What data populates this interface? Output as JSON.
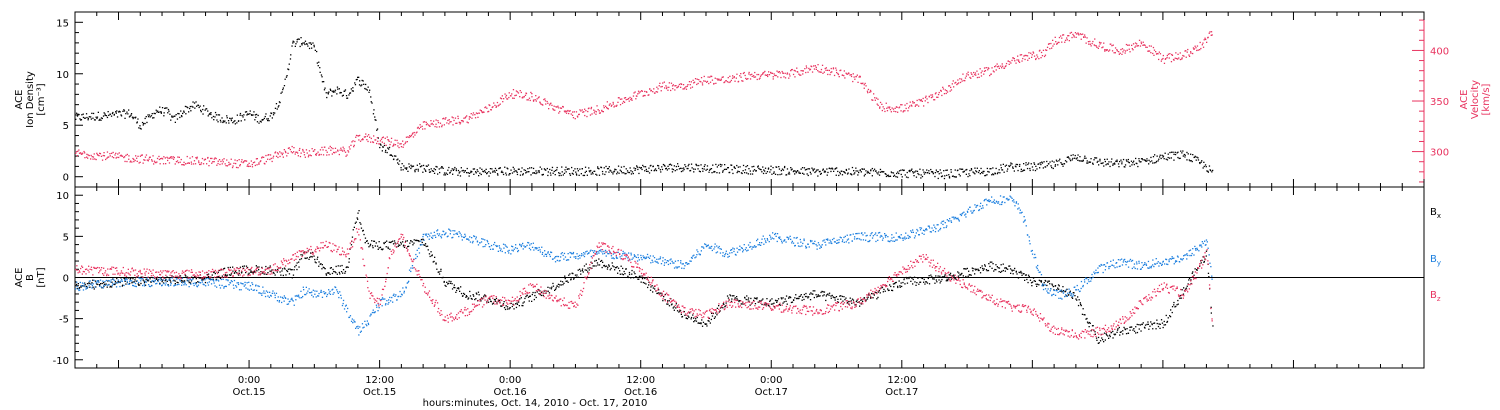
{
  "chart_data": [
    {
      "type": "scatter",
      "panel": "top",
      "left_axis": {
        "label_lines": [
          "ACE",
          "Ion Density",
          "[cm⁻³]"
        ],
        "range": [
          -1,
          16
        ],
        "ticks": [
          "0",
          "5",
          "10",
          "15"
        ],
        "tick_values": [
          0,
          5,
          10,
          15
        ]
      },
      "right_axis": {
        "label_lines": [
          "ACE",
          "Velocity",
          "[km/s]"
        ],
        "range": [
          265,
          438
        ],
        "ticks": [
          "300",
          "350",
          "400"
        ],
        "tick_values": [
          300,
          350,
          400
        ],
        "color": "#e8335f"
      },
      "series": [
        {
          "color": "#000000",
          "axis": "left",
          "x_hours": [
            -16,
            -13,
            -11,
            -10,
            -8.5,
            -7.5,
            -7,
            -6,
            -5,
            -3,
            -1.5,
            0,
            1,
            2,
            3,
            4,
            5,
            6,
            7,
            8,
            9,
            10,
            11,
            12,
            13,
            14,
            16,
            18,
            20,
            24,
            28,
            32,
            36,
            40,
            44,
            48,
            52,
            54,
            56,
            60,
            64,
            68,
            70,
            72,
            74,
            76,
            78,
            80,
            82,
            84,
            86,
            88,
            88.5
          ],
          "values": [
            5.8,
            6.0,
            6.2,
            5.0,
            6.5,
            6.3,
            5.5,
            6.5,
            7.0,
            5.8,
            5.5,
            6.2,
            5.6,
            6.0,
            8.0,
            13.0,
            13.2,
            12.5,
            8.0,
            8.5,
            8.0,
            9.5,
            8.5,
            3.0,
            2.5,
            1.0,
            0.9,
            0.6,
            0.5,
            0.6,
            0.6,
            0.6,
            0.8,
            1.0,
            0.8,
            0.7,
            0.5,
            0.6,
            0.5,
            0.4,
            0.3,
            0.6,
            1.0,
            1.0,
            1.2,
            2.0,
            1.5,
            1.3,
            1.5,
            2.0,
            2.2,
            1.0,
            0.3
          ]
        },
        {
          "color": "#e8335f",
          "axis": "right",
          "x_hours": [
            -16,
            -12,
            -8,
            -4,
            0,
            3,
            4,
            5,
            6,
            8,
            9,
            10,
            12,
            14,
            16,
            18,
            20,
            22,
            24,
            26,
            28,
            30,
            32,
            34,
            36,
            38,
            40,
            42,
            44,
            46,
            48,
            50,
            52,
            54,
            56,
            58,
            60,
            62,
            64,
            66,
            68,
            70,
            72,
            73,
            74,
            76,
            78,
            80,
            82,
            84,
            86,
            88,
            88.5
          ],
          "values": [
            299,
            295,
            292,
            291,
            288,
            298,
            303,
            298,
            300,
            302,
            300,
            315,
            312,
            308,
            326,
            330,
            333,
            343,
            358,
            355,
            344,
            337,
            342,
            350,
            358,
            365,
            366,
            372,
            371,
            376,
            376,
            378,
            384,
            379,
            372,
            345,
            343,
            350,
            362,
            376,
            380,
            390,
            395,
            398,
            410,
            416,
            406,
            400,
            408,
            392,
            396,
            410,
            420
          ]
        }
      ]
    },
    {
      "type": "scatter",
      "panel": "bottom",
      "left_axis": {
        "label_lines": [
          "ACE",
          "B",
          "[nT]"
        ],
        "range": [
          -11,
          11
        ],
        "ticks": [
          "-10",
          "-5",
          "0",
          "5",
          "10"
        ],
        "tick_values": [
          -10,
          -5,
          0,
          5,
          10
        ]
      },
      "zero_line": 0,
      "legend": [
        {
          "text": "B",
          "sub": "x",
          "color": "#000000"
        },
        {
          "text": "B",
          "sub": "y",
          "color": "#1c7fdf"
        },
        {
          "text": "B",
          "sub": "z",
          "color": "#e8335f"
        }
      ],
      "series": [
        {
          "color": "#000000",
          "x_hours": [
            -16,
            -12,
            -8,
            -4,
            -2,
            0,
            2,
            4,
            5,
            6,
            7,
            8,
            9,
            9.5,
            10,
            10.5,
            11,
            12,
            14,
            16,
            18,
            20,
            22,
            24,
            28,
            32,
            36,
            40,
            42,
            44,
            48,
            52,
            56,
            60,
            64,
            68,
            70,
            72,
            74,
            76,
            78,
            80,
            84,
            88,
            88.5
          ],
          "values": [
            -1.0,
            -0.5,
            -0.3,
            0.0,
            0.8,
            1.0,
            1.0,
            0.5,
            3.0,
            2.5,
            0.5,
            1.0,
            1.0,
            6.0,
            8.0,
            5.0,
            4.0,
            4.0,
            4.0,
            4.5,
            -0.5,
            -2.0,
            -2.5,
            -3.5,
            -1.0,
            2.0,
            0.0,
            -4.5,
            -5.5,
            -2.5,
            -3.0,
            -2.0,
            -3.0,
            -0.5,
            0.0,
            1.5,
            1.0,
            -0.5,
            -1.0,
            -2.5,
            -7.5,
            -6.5,
            -5.5,
            3.0,
            -5.5
          ]
        },
        {
          "color": "#1c7fdf",
          "x_hours": [
            -16,
            -12,
            -8,
            -4,
            0,
            4,
            5,
            6,
            8,
            10,
            11,
            12,
            14,
            16,
            18,
            20,
            22,
            24,
            26,
            28,
            32,
            36,
            40,
            42,
            44,
            48,
            52,
            56,
            60,
            64,
            66,
            68,
            70,
            71,
            72,
            73,
            74,
            75,
            76,
            78,
            80,
            82,
            84,
            86,
            88,
            88.5
          ],
          "values": [
            -1.0,
            -0.5,
            -0.5,
            -0.5,
            -1.0,
            -3.0,
            -1.5,
            -2.0,
            -1.5,
            -6.5,
            -5.0,
            -3.0,
            -2.0,
            5.0,
            5.5,
            5.0,
            4.0,
            3.5,
            4.0,
            2.5,
            3.0,
            2.5,
            1.5,
            4.0,
            3.0,
            5.0,
            4.0,
            5.0,
            5.0,
            6.5,
            8.0,
            9.5,
            9.5,
            8.0,
            3.0,
            -1.0,
            -2.0,
            -2.0,
            -1.5,
            1.0,
            2.0,
            1.5,
            2.0,
            2.5,
            4.5,
            0.0
          ]
        },
        {
          "color": "#e8335f",
          "x_hours": [
            -16,
            -12,
            -8,
            -4,
            0,
            2,
            4,
            5,
            6,
            7,
            8,
            9,
            10,
            11,
            12,
            13,
            14,
            16,
            18,
            20,
            22,
            24,
            26,
            28,
            30,
            32,
            34,
            36,
            38,
            40,
            42,
            44,
            48,
            52,
            56,
            60,
            62,
            64,
            66,
            68,
            70,
            72,
            74,
            75,
            76,
            78,
            80,
            82,
            84,
            86,
            88,
            88.5
          ],
          "values": [
            1.0,
            0.8,
            0.5,
            0.5,
            0.8,
            1.0,
            2.5,
            3.0,
            3.5,
            4.0,
            3.5,
            3.0,
            6.0,
            -2.0,
            -3.0,
            3.0,
            5.0,
            -1.0,
            -5.0,
            -4.0,
            -2.5,
            -3.0,
            -1.0,
            -2.5,
            -3.5,
            4.0,
            3.0,
            1.0,
            -2.0,
            -4.0,
            -4.5,
            -3.0,
            -3.5,
            -4.0,
            -3.0,
            1.0,
            2.5,
            0.5,
            -1.0,
            -2.5,
            -3.5,
            -4.0,
            -6.5,
            -6.5,
            -7.0,
            -6.5,
            -5.5,
            -3.0,
            -1.0,
            -2.0,
            3.0,
            -6.0
          ]
        }
      ]
    }
  ],
  "x_axis": {
    "range_hours": [
      -16,
      108
    ],
    "major_tick_hours": [
      0,
      12,
      24,
      36,
      48,
      60
    ],
    "tick_label_time": [
      "0:00",
      "12:00",
      "0:00",
      "12:00",
      "0:00",
      "12:00"
    ],
    "tick_label_date": [
      "Oct.15",
      "Oct.15",
      "Oct.16",
      "Oct.16",
      "Oct.17",
      "Oct.17"
    ],
    "title": "hours:minutes, Oct. 14, 2010 - Oct. 17, 2010"
  }
}
